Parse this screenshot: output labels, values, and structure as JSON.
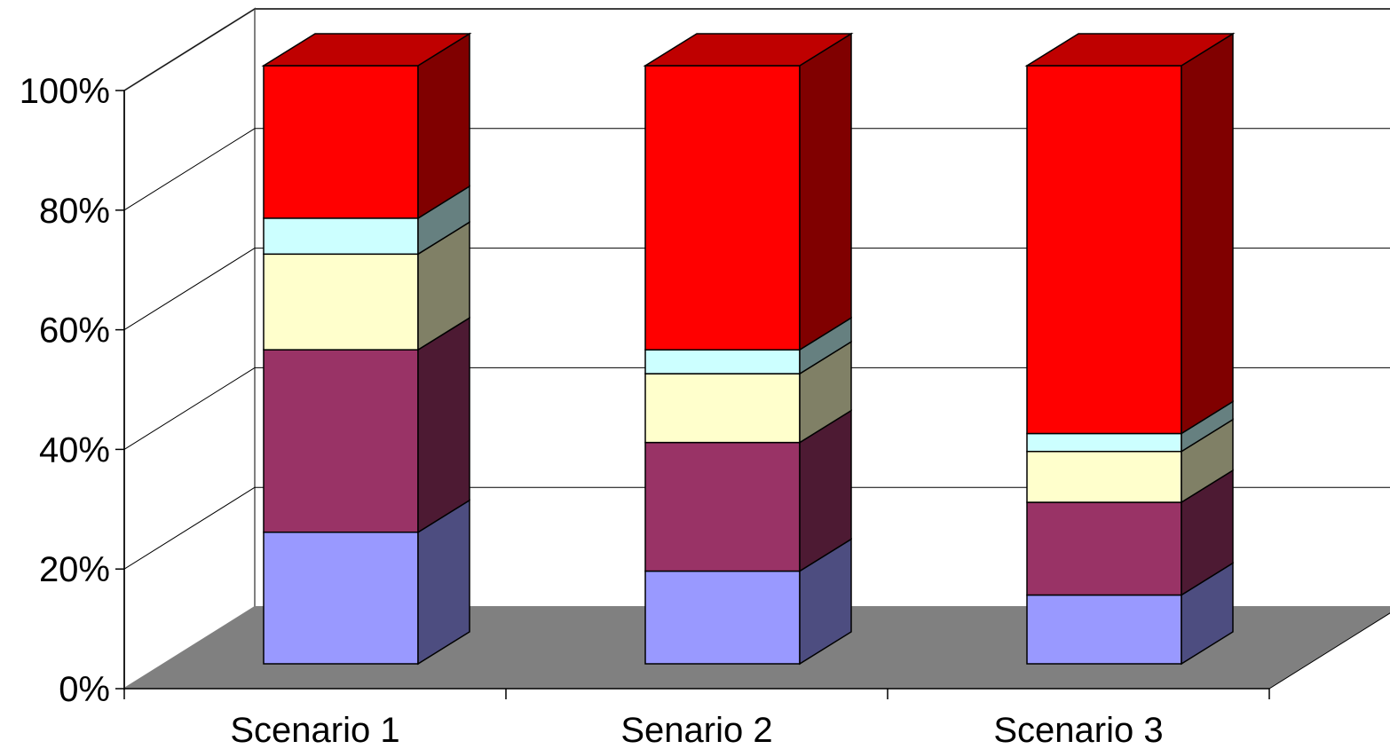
{
  "chart_data": {
    "type": "bar",
    "stacked": "percent",
    "three_d": true,
    "categories": [
      "Scenario 1",
      "Senario 2",
      "Scenario 3"
    ],
    "series": [
      {
        "values": [
          22,
          15.5,
          11.5
        ],
        "color": "#9999FF",
        "side_color": "#4D4D80",
        "top_color": "#7373BF"
      },
      {
        "values": [
          30.5,
          21.5,
          15.5
        ],
        "color": "#993366",
        "side_color": "#4D1A33",
        "top_color": "#73264D"
      },
      {
        "values": [
          16,
          11.5,
          8.5
        ],
        "color": "#FFFFCC",
        "side_color": "#808066",
        "top_color": "#BFBF99"
      },
      {
        "values": [
          6,
          4,
          3
        ],
        "color": "#CCFFFF",
        "side_color": "#668080",
        "top_color": "#99BFBF"
      },
      {
        "values": [
          25.5,
          47.5,
          61.5
        ],
        "color": "#FF0000",
        "side_color": "#800000",
        "top_color": "#BF0000"
      }
    ],
    "y_ticks": [
      "0%",
      "20%",
      "40%",
      "60%",
      "80%",
      "100%"
    ],
    "ylim": [
      0,
      100
    ],
    "grid": true,
    "legend": "none",
    "floor_color": "#808080"
  }
}
